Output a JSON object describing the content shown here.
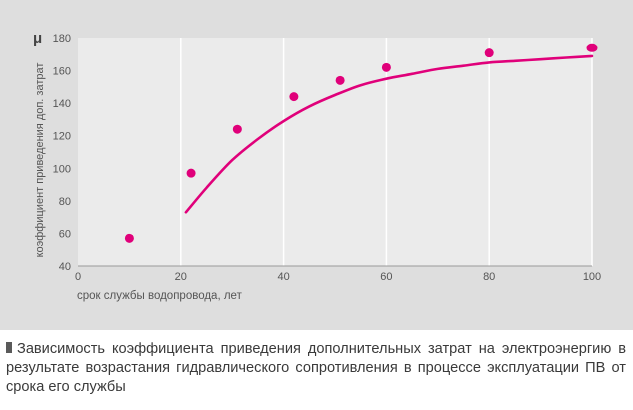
{
  "chart_data": {
    "type": "scatter",
    "ylabel_symbol": "μ",
    "ylabel": "коэффициент приведения доп. затрат",
    "xlabel": "срок службы водопровода, лет",
    "xlim": [
      0,
      100
    ],
    "ylim": [
      40,
      180
    ],
    "xticks": [
      0,
      20,
      40,
      60,
      80,
      100
    ],
    "yticks": [
      40,
      60,
      80,
      100,
      120,
      140,
      160,
      180
    ],
    "grid": "vertical",
    "colors": {
      "marker": "#e0007a",
      "background": "#dedede",
      "plot": "#ebebeb",
      "grid": "#ffffff"
    },
    "series": [
      {
        "type": "scatter",
        "x": [
          10,
          22,
          31,
          42,
          51,
          60,
          80,
          100
        ],
        "y": [
          57,
          97,
          124,
          144,
          154,
          162,
          171,
          174
        ]
      },
      {
        "type": "line",
        "x": [
          21,
          25,
          30,
          35,
          40,
          45,
          50,
          55,
          60,
          65,
          70,
          75,
          80,
          85,
          90,
          95,
          100
        ],
        "y": [
          73,
          88,
          105,
          118,
          129,
          138,
          145,
          151,
          155,
          158,
          161,
          163,
          165,
          166,
          167,
          168,
          169
        ]
      }
    ]
  },
  "caption": "Зависимость коэффициента приведения дополнительных затрат на электроэнергию в результате возрастания гидравлического сопротивления в процессе эксплуатации ПВ от срока его службы"
}
